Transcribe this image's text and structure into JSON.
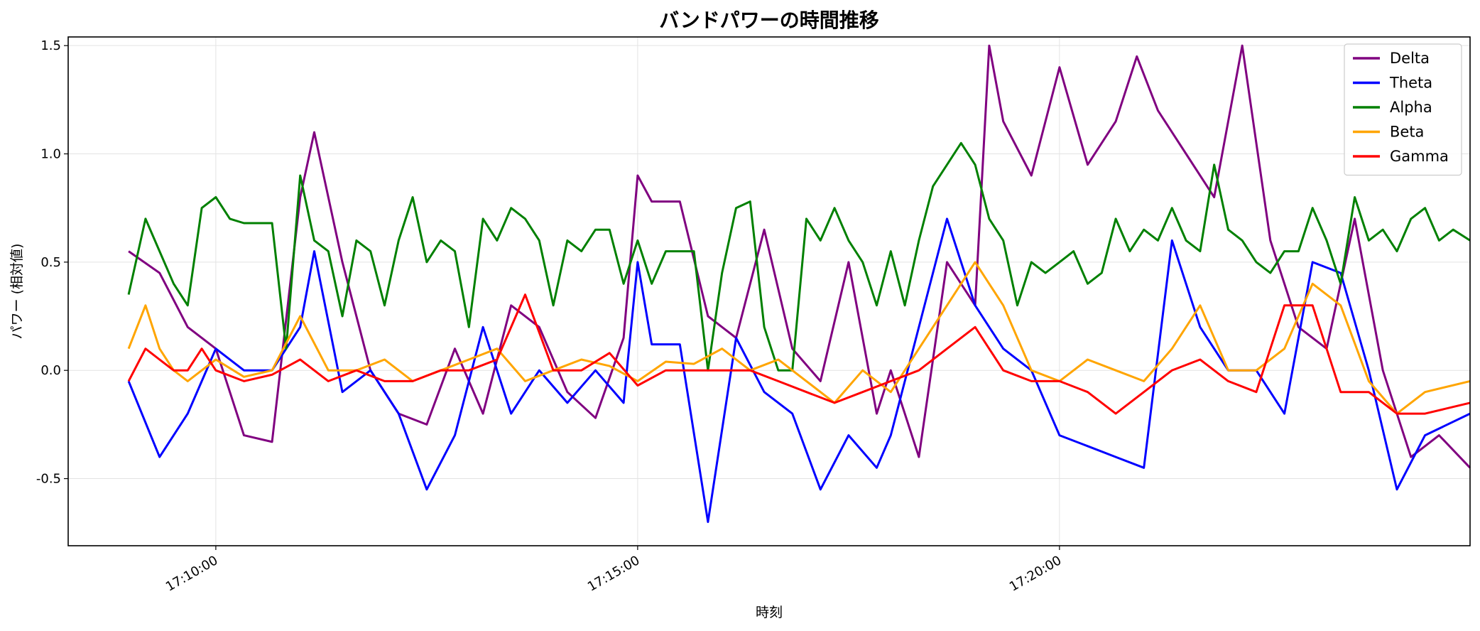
{
  "chart_data": {
    "type": "line",
    "title": "バンドパワーの時間推移",
    "xlabel": "時刻",
    "ylabel": "パワー (相対値)",
    "x_unit": "seconds since 17:00:00 (clock time)",
    "xlim": [
      "17:08:15",
      "17:24:52"
    ],
    "ylim": [
      -0.81,
      1.54
    ],
    "x_ticks": [
      "17:10:00",
      "17:15:00",
      "17:20:00"
    ],
    "y_ticks": [
      "-0.5",
      "0.0",
      "0.5",
      "1.0",
      "1.5"
    ],
    "grid": true,
    "legend_position": "upper right",
    "data_range": [
      "17:08:58",
      "17:24:52"
    ],
    "series": [
      {
        "name": "Delta",
        "color": "#800080",
        "x": [
          "17:08:58",
          "17:09:20",
          "17:09:40",
          "17:10:00",
          "17:10:10",
          "17:10:20",
          "17:10:40",
          "17:11:00",
          "17:11:10",
          "17:11:30",
          "17:11:50",
          "17:12:10",
          "17:12:30",
          "17:12:50",
          "17:13:10",
          "17:13:30",
          "17:13:50",
          "17:14:10",
          "17:14:30",
          "17:14:50",
          "17:15:00",
          "17:15:10",
          "17:15:30",
          "17:15:50",
          "17:16:10",
          "17:16:30",
          "17:16:50",
          "17:17:10",
          "17:17:30",
          "17:17:50",
          "17:18:00",
          "17:18:20",
          "17:18:40",
          "17:19:00",
          "17:19:10",
          "17:19:20",
          "17:19:40",
          "17:20:00",
          "17:20:20",
          "17:20:40",
          "17:20:55",
          "17:21:10",
          "17:21:30",
          "17:21:50",
          "17:22:10",
          "17:22:30",
          "17:22:50",
          "17:23:10",
          "17:23:30",
          "17:23:50",
          "17:24:10",
          "17:24:30",
          "17:24:52"
        ],
        "values": [
          0.55,
          0.45,
          0.2,
          0.1,
          -0.1,
          -0.3,
          -0.33,
          0.8,
          1.1,
          0.5,
          0.0,
          -0.2,
          -0.25,
          0.1,
          -0.2,
          0.3,
          0.2,
          -0.1,
          -0.22,
          0.15,
          0.9,
          0.78,
          0.78,
          0.25,
          0.15,
          0.65,
          0.1,
          -0.05,
          0.5,
          -0.2,
          0.0,
          -0.4,
          0.5,
          0.3,
          1.5,
          1.15,
          0.9,
          1.4,
          0.95,
          1.15,
          1.45,
          1.2,
          1.0,
          0.8,
          1.5,
          0.6,
          0.2,
          0.1,
          0.7,
          0.0,
          -0.4,
          -0.3,
          -0.45
        ]
      },
      {
        "name": "Theta",
        "color": "#0000ff",
        "x": [
          "17:08:58",
          "17:09:20",
          "17:09:40",
          "17:10:00",
          "17:10:20",
          "17:10:40",
          "17:11:00",
          "17:11:10",
          "17:11:30",
          "17:11:50",
          "17:12:10",
          "17:12:30",
          "17:12:50",
          "17:13:10",
          "17:13:30",
          "17:13:50",
          "17:14:10",
          "17:14:30",
          "17:14:50",
          "17:15:00",
          "17:15:10",
          "17:15:30",
          "17:15:50",
          "17:16:10",
          "17:16:30",
          "17:16:50",
          "17:17:10",
          "17:17:30",
          "17:17:50",
          "17:18:00",
          "17:18:20",
          "17:18:40",
          "17:19:00",
          "17:19:20",
          "17:19:40",
          "17:20:00",
          "17:20:20",
          "17:20:40",
          "17:21:00",
          "17:21:20",
          "17:21:40",
          "17:22:00",
          "17:22:20",
          "17:22:40",
          "17:23:00",
          "17:23:20",
          "17:23:40",
          "17:24:00",
          "17:24:20",
          "17:24:52"
        ],
        "values": [
          -0.05,
          -0.4,
          -0.2,
          0.1,
          0.0,
          0.0,
          0.2,
          0.55,
          -0.1,
          0.0,
          -0.2,
          -0.55,
          -0.3,
          0.2,
          -0.2,
          0.0,
          -0.15,
          0.0,
          -0.15,
          0.5,
          0.12,
          0.12,
          -0.7,
          0.15,
          -0.1,
          -0.2,
          -0.55,
          -0.3,
          -0.45,
          -0.3,
          0.2,
          0.7,
          0.3,
          0.1,
          0.0,
          -0.3,
          -0.35,
          -0.4,
          -0.45,
          0.6,
          0.2,
          0.0,
          0.0,
          -0.2,
          0.5,
          0.45,
          0.0,
          -0.55,
          -0.3,
          -0.2
        ]
      },
      {
        "name": "Alpha",
        "color": "#008000",
        "x": [
          "17:08:58",
          "17:09:10",
          "17:09:20",
          "17:09:30",
          "17:09:40",
          "17:09:50",
          "17:10:00",
          "17:10:10",
          "17:10:20",
          "17:10:30",
          "17:10:40",
          "17:10:50",
          "17:11:00",
          "17:11:10",
          "17:11:20",
          "17:11:30",
          "17:11:40",
          "17:11:50",
          "17:12:00",
          "17:12:10",
          "17:12:20",
          "17:12:30",
          "17:12:40",
          "17:12:50",
          "17:13:00",
          "17:13:10",
          "17:13:20",
          "17:13:30",
          "17:13:40",
          "17:13:50",
          "17:14:00",
          "17:14:10",
          "17:14:20",
          "17:14:30",
          "17:14:40",
          "17:14:50",
          "17:15:00",
          "17:15:10",
          "17:15:20",
          "17:15:30",
          "17:15:40",
          "17:15:50",
          "17:16:00",
          "17:16:10",
          "17:16:20",
          "17:16:30",
          "17:16:40",
          "17:16:50",
          "17:17:00",
          "17:17:10",
          "17:17:20",
          "17:17:30",
          "17:17:40",
          "17:17:50",
          "17:18:00",
          "17:18:10",
          "17:18:20",
          "17:18:30",
          "17:18:40",
          "17:18:50",
          "17:19:00",
          "17:19:10",
          "17:19:20",
          "17:19:30",
          "17:19:40",
          "17:19:50",
          "17:20:00",
          "17:20:10",
          "17:20:20",
          "17:20:30",
          "17:20:40",
          "17:20:50",
          "17:21:00",
          "17:21:10",
          "17:21:20",
          "17:21:30",
          "17:21:40",
          "17:21:50",
          "17:22:00",
          "17:22:10",
          "17:22:20",
          "17:22:30",
          "17:22:40",
          "17:22:50",
          "17:23:00",
          "17:23:10",
          "17:23:20",
          "17:23:30",
          "17:23:40",
          "17:23:50",
          "17:24:00",
          "17:24:10",
          "17:24:20",
          "17:24:30",
          "17:24:40",
          "17:24:52"
        ],
        "values": [
          0.35,
          0.7,
          0.55,
          0.4,
          0.3,
          0.75,
          0.8,
          0.7,
          0.68,
          0.68,
          0.68,
          0.1,
          0.9,
          0.6,
          0.55,
          0.25,
          0.6,
          0.55,
          0.3,
          0.6,
          0.8,
          0.5,
          0.6,
          0.55,
          0.2,
          0.7,
          0.6,
          0.75,
          0.7,
          0.6,
          0.3,
          0.6,
          0.55,
          0.65,
          0.65,
          0.4,
          0.6,
          0.4,
          0.55,
          0.55,
          0.55,
          0.0,
          0.45,
          0.75,
          0.78,
          0.2,
          0.0,
          0.0,
          0.7,
          0.6,
          0.75,
          0.6,
          0.5,
          0.3,
          0.55,
          0.3,
          0.6,
          0.85,
          0.95,
          1.05,
          0.95,
          0.7,
          0.6,
          0.3,
          0.5,
          0.45,
          0.5,
          0.55,
          0.4,
          0.45,
          0.7,
          0.55,
          0.65,
          0.6,
          0.75,
          0.6,
          0.55,
          0.95,
          0.65,
          0.6,
          0.5,
          0.45,
          0.55,
          0.55,
          0.75,
          0.6,
          0.4,
          0.8,
          0.6,
          0.65,
          0.55,
          0.7,
          0.75,
          0.6,
          0.65,
          0.6
        ]
      },
      {
        "name": "Beta",
        "color": "#ffa500",
        "x": [
          "17:08:58",
          "17:09:10",
          "17:09:20",
          "17:09:30",
          "17:09:40",
          "17:09:50",
          "17:10:00",
          "17:10:20",
          "17:10:40",
          "17:11:00",
          "17:11:20",
          "17:11:40",
          "17:12:00",
          "17:12:20",
          "17:12:40",
          "17:13:00",
          "17:13:20",
          "17:13:40",
          "17:14:00",
          "17:14:20",
          "17:14:40",
          "17:15:00",
          "17:15:20",
          "17:15:40",
          "17:16:00",
          "17:16:20",
          "17:16:40",
          "17:17:00",
          "17:17:20",
          "17:17:40",
          "17:18:00",
          "17:18:20",
          "17:18:40",
          "17:19:00",
          "17:19:20",
          "17:19:40",
          "17:20:00",
          "17:20:20",
          "17:20:40",
          "17:21:00",
          "17:21:20",
          "17:21:40",
          "17:22:00",
          "17:22:20",
          "17:22:40",
          "17:23:00",
          "17:23:20",
          "17:23:40",
          "17:24:00",
          "17:24:20",
          "17:24:52"
        ],
        "values": [
          0.1,
          0.3,
          0.1,
          0.0,
          -0.05,
          0.0,
          0.05,
          -0.03,
          0.0,
          0.25,
          0.0,
          0.0,
          0.05,
          -0.05,
          0.0,
          0.05,
          0.1,
          -0.05,
          0.0,
          0.05,
          0.02,
          -0.05,
          0.04,
          0.03,
          0.1,
          0.0,
          0.05,
          -0.05,
          -0.15,
          0.0,
          -0.1,
          0.1,
          0.3,
          0.5,
          0.3,
          0.0,
          -0.05,
          0.05,
          0.0,
          -0.05,
          0.1,
          0.3,
          0.0,
          0.0,
          0.1,
          0.4,
          0.3,
          -0.05,
          -0.2,
          -0.1,
          -0.05
        ]
      },
      {
        "name": "Gamma",
        "color": "#ff0000",
        "x": [
          "17:08:58",
          "17:09:10",
          "17:09:20",
          "17:09:30",
          "17:09:40",
          "17:09:50",
          "17:10:00",
          "17:10:20",
          "17:10:40",
          "17:11:00",
          "17:11:20",
          "17:11:40",
          "17:12:00",
          "17:12:20",
          "17:12:40",
          "17:13:00",
          "17:13:20",
          "17:13:40",
          "17:14:00",
          "17:14:20",
          "17:14:40",
          "17:15:00",
          "17:15:20",
          "17:15:40",
          "17:16:00",
          "17:16:20",
          "17:16:40",
          "17:17:00",
          "17:17:20",
          "17:17:40",
          "17:18:00",
          "17:18:20",
          "17:18:40",
          "17:19:00",
          "17:19:20",
          "17:19:40",
          "17:20:00",
          "17:20:20",
          "17:20:40",
          "17:21:00",
          "17:21:20",
          "17:21:40",
          "17:22:00",
          "17:22:20",
          "17:22:40",
          "17:23:00",
          "17:23:20",
          "17:23:40",
          "17:24:00",
          "17:24:20",
          "17:24:52"
        ],
        "values": [
          -0.05,
          0.1,
          0.05,
          0.0,
          0.0,
          0.1,
          0.0,
          -0.05,
          -0.02,
          0.05,
          -0.05,
          0.0,
          -0.05,
          -0.05,
          0.0,
          0.0,
          0.05,
          0.35,
          0.0,
          0.0,
          0.08,
          -0.07,
          0.0,
          0.0,
          0.0,
          0.0,
          -0.05,
          -0.1,
          -0.15,
          -0.1,
          -0.05,
          0.0,
          0.1,
          0.2,
          0.0,
          -0.05,
          -0.05,
          -0.1,
          -0.2,
          -0.1,
          0.0,
          0.05,
          -0.05,
          -0.1,
          0.3,
          0.3,
          -0.1,
          -0.1,
          -0.2,
          -0.2,
          -0.15
        ]
      }
    ]
  }
}
